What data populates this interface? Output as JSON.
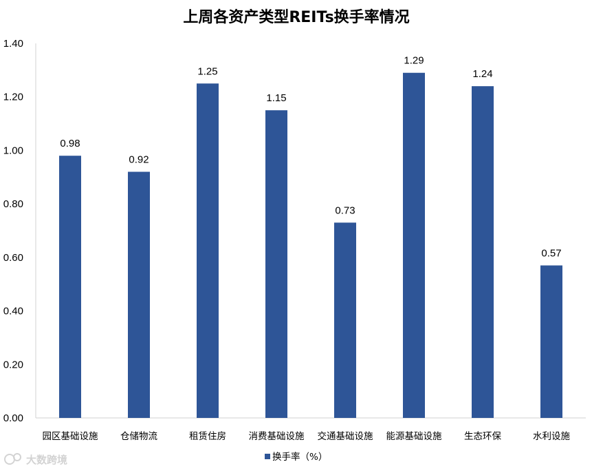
{
  "chart_data": {
    "type": "bar",
    "title": "上周各资产类型REITs换手率情况",
    "categories": [
      "园区基础设施",
      "仓储物流",
      "租赁住房",
      "消费基础设施",
      "交通基础设施",
      "能源基础设施",
      "生态环保",
      "水利设施"
    ],
    "series": [
      {
        "name": "换手率（%）",
        "values": [
          0.98,
          0.92,
          1.25,
          1.15,
          0.73,
          1.29,
          1.24,
          0.57
        ],
        "color": "#2E5597"
      }
    ],
    "data_labels": [
      "0.98",
      "0.92",
      "1.25",
      "1.15",
      "0.73",
      "1.29",
      "1.24",
      "0.57"
    ],
    "yticks": [
      "0.00",
      "0.20",
      "0.40",
      "0.60",
      "0.80",
      "1.00",
      "1.20",
      "1.40"
    ],
    "ylim": [
      0,
      1.4
    ],
    "grid": false,
    "legend": "bottom"
  },
  "watermark": {
    "text": "大数跨境"
  }
}
